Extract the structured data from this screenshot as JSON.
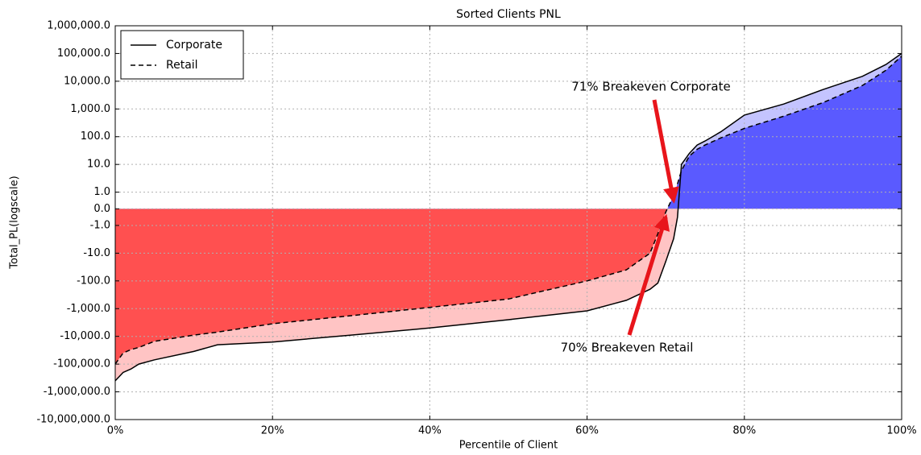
{
  "chart_data": {
    "type": "line",
    "title": "Sorted Clients PNL",
    "x_label": "Percentile of Client",
    "y_label": "Total_PL(logscale)",
    "yscale": "symlog",
    "grid": true,
    "legend": "upper left",
    "xlim": [
      0,
      100
    ],
    "xticks": [
      {
        "value": 0,
        "label": "0%"
      },
      {
        "value": 20,
        "label": "20%"
      },
      {
        "value": 40,
        "label": "40%"
      },
      {
        "value": 60,
        "label": "60%"
      },
      {
        "value": 80,
        "label": "80%"
      },
      {
        "value": 100,
        "label": "100%"
      }
    ],
    "ylim": [
      -10000000,
      1000000
    ],
    "yticks": [
      {
        "value": -10000000,
        "label": "-10,000,000.0"
      },
      {
        "value": -1000000,
        "label": "-1,000,000.0"
      },
      {
        "value": -100000,
        "label": "-100,000.0"
      },
      {
        "value": -10000,
        "label": "-10,000.0"
      },
      {
        "value": -1000,
        "label": "-1,000.0"
      },
      {
        "value": -100,
        "label": "-100.0"
      },
      {
        "value": -10,
        "label": "-10.0"
      },
      {
        "value": -1,
        "label": "-1.0"
      },
      {
        "value": 0,
        "label": "0.0"
      },
      {
        "value": 1,
        "label": "1.0"
      },
      {
        "value": 10,
        "label": "10.0"
      },
      {
        "value": 100,
        "label": "100.0"
      },
      {
        "value": 1000,
        "label": "1,000.0"
      },
      {
        "value": 10000,
        "label": "10,000.0"
      },
      {
        "value": 100000,
        "label": "100,000.0"
      },
      {
        "value": 1000000,
        "label": "1,000,000.0"
      }
    ],
    "series": [
      {
        "name": "Corporate",
        "color": "#000000",
        "dash": "solid",
        "fill_negative": "#ffc4c4",
        "fill_positive": "#c4c4ff",
        "x": [
          0,
          1,
          2,
          3,
          5,
          10,
          13,
          20,
          30,
          40,
          50,
          60,
          65,
          68,
          69,
          70,
          71,
          71.5,
          72,
          73,
          74,
          75,
          77,
          80,
          85,
          90,
          95,
          98,
          100
        ],
        "values": [
          -400000,
          -200000,
          -150000,
          -100000,
          -70000,
          -35000,
          -20000,
          -16000,
          -9000,
          -5000,
          -2500,
          -1200,
          -500,
          -200,
          -120,
          -20,
          -3,
          -0.5,
          10,
          25,
          50,
          70,
          150,
          600,
          1500,
          5000,
          15000,
          40000,
          100000
        ]
      },
      {
        "name": "Retail",
        "color": "#000000",
        "dash": "dashed",
        "fill_negative": "#ff5050",
        "fill_positive": "#5a5aff",
        "x": [
          0,
          1,
          2,
          3,
          5,
          10,
          13,
          20,
          30,
          40,
          50,
          60,
          65,
          68,
          69,
          70,
          71,
          71.5,
          72,
          73,
          74,
          75,
          77,
          80,
          85,
          90,
          95,
          98,
          100
        ],
        "values": [
          -100000,
          -40000,
          -30000,
          -25000,
          -15000,
          -9000,
          -7000,
          -3500,
          -1800,
          -900,
          -450,
          -100,
          -40,
          -10,
          -2,
          -0.2,
          0.8,
          2,
          6,
          20,
          35,
          50,
          90,
          200,
          550,
          1700,
          7000,
          25000,
          80000
        ]
      }
    ],
    "annotations": [
      {
        "text": "71% Breakeven Corporate",
        "x": 71,
        "y": 0.5,
        "color": "#e8151b"
      },
      {
        "text": "70% Breakeven Retail",
        "x": 70,
        "y": -0.5,
        "color": "#e8151b"
      }
    ]
  }
}
